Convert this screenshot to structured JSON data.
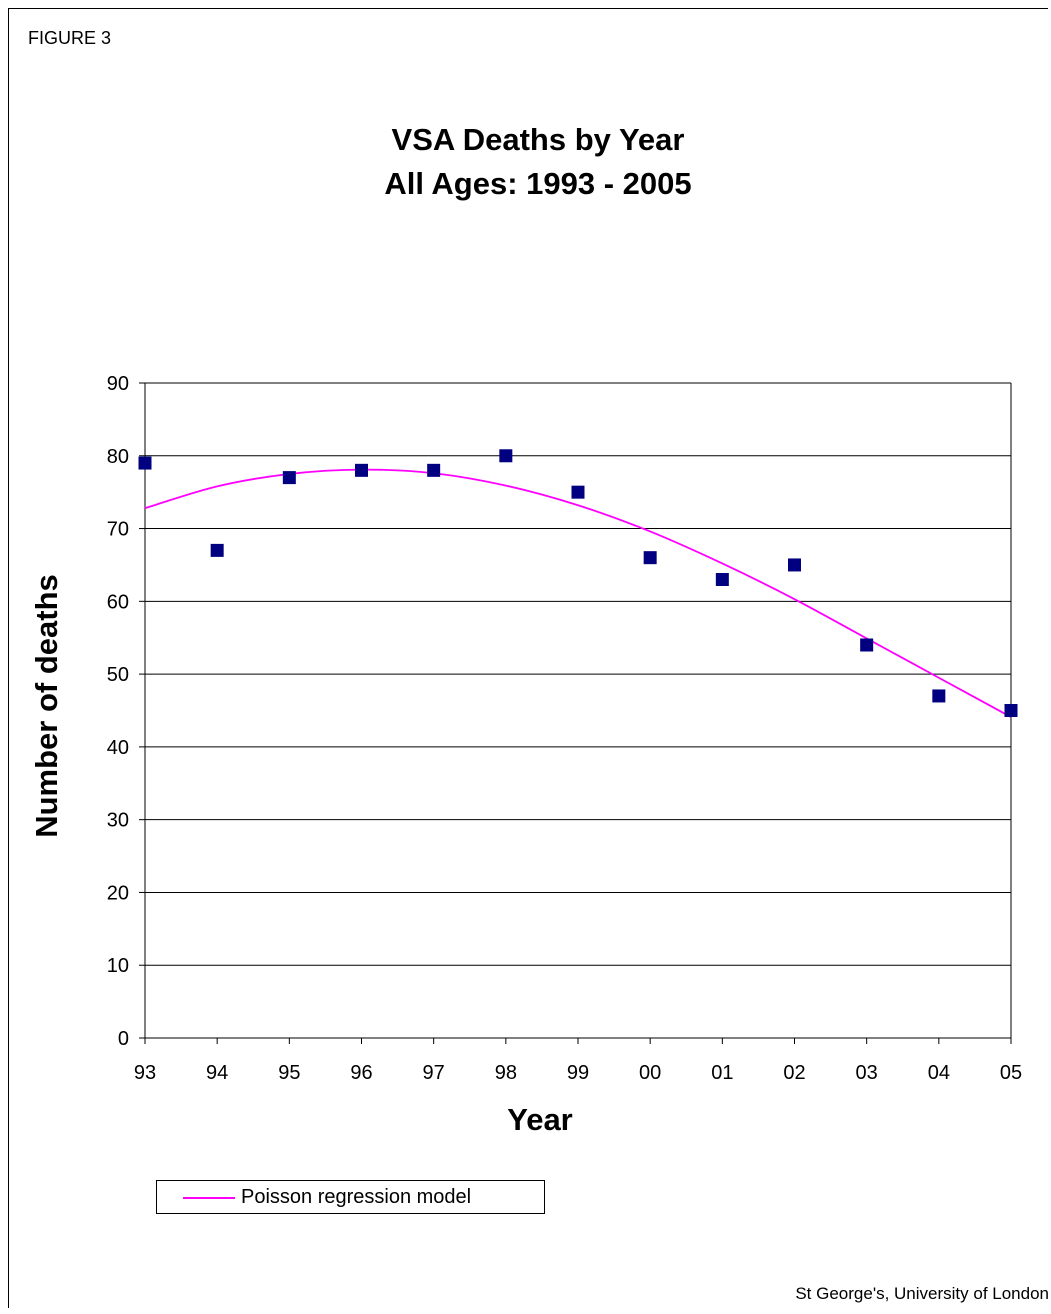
{
  "figure_label": "FIGURE 3",
  "credit": "St George's, University of London",
  "colors": {
    "points": "#000080",
    "model_line": "#ff00ff",
    "grid": "#000000"
  },
  "chart_data": {
    "type": "scatter",
    "title": [
      "VSA Deaths by Year",
      "All Ages: 1993 - 2005"
    ],
    "xlabel": "Year",
    "ylabel": "Number of deaths",
    "categories": [
      "93",
      "94",
      "95",
      "96",
      "97",
      "98",
      "99",
      "00",
      "01",
      "02",
      "03",
      "04",
      "05"
    ],
    "ylim": [
      0,
      90
    ],
    "yticks": [
      "0",
      "10",
      "20",
      "30",
      "40",
      "50",
      "60",
      "70",
      "80",
      "90"
    ],
    "grid": true,
    "legend_position": "bottom-left",
    "series": [
      {
        "values": [
          79,
          67,
          77,
          78,
          78,
          80,
          75,
          66,
          63,
          65,
          54,
          47,
          45
        ]
      },
      {
        "name": "Poisson regression model",
        "style": "line",
        "values": [
          72.8,
          75.8,
          77.5,
          78.1,
          77.6,
          75.9,
          73.2,
          69.6,
          65.2,
          60.3,
          54.9,
          49.5,
          44.1
        ]
      }
    ]
  }
}
